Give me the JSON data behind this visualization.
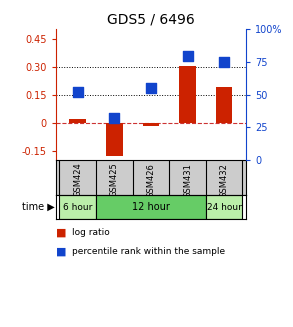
{
  "title": "GDS5 / 6496",
  "samples": [
    "GSM424",
    "GSM425",
    "GSM426",
    "GSM431",
    "GSM432"
  ],
  "log_ratio": [
    0.02,
    -0.18,
    -0.02,
    0.305,
    0.19
  ],
  "percentile_rank": [
    0.52,
    0.32,
    0.55,
    0.8,
    0.75
  ],
  "left_ylim": [
    -0.2,
    0.5
  ],
  "right_ylim": [
    0.0,
    1.0
  ],
  "left_yticks": [
    -0.15,
    0.0,
    0.15,
    0.3,
    0.45
  ],
  "left_yticklabels": [
    "-0.15",
    "0",
    "0.15",
    "0.30",
    "0.45"
  ],
  "right_yticks": [
    0.0,
    0.25,
    0.5,
    0.75,
    1.0
  ],
  "right_yticklabels": [
    "0",
    "25",
    "50",
    "75",
    "100%"
  ],
  "hlines": [
    0.15,
    0.3
  ],
  "bar_color": "#cc2200",
  "dot_color": "#1144cc",
  "bar_width": 0.45,
  "dot_size": 50,
  "time_groups": [
    {
      "label": "6 hour",
      "n": 1,
      "color": "#bbeeaa"
    },
    {
      "label": "12 hour",
      "n": 3,
      "color": "#66cc66"
    },
    {
      "label": "24 hour",
      "n": 1,
      "color": "#bbeeaa"
    }
  ],
  "legend_bar_label": "log ratio",
  "legend_dot_label": "percentile rank within the sample",
  "bg_plot": "#ffffff",
  "bg_label": "#cccccc",
  "tick_fontsize": 7,
  "title_fontsize": 10
}
